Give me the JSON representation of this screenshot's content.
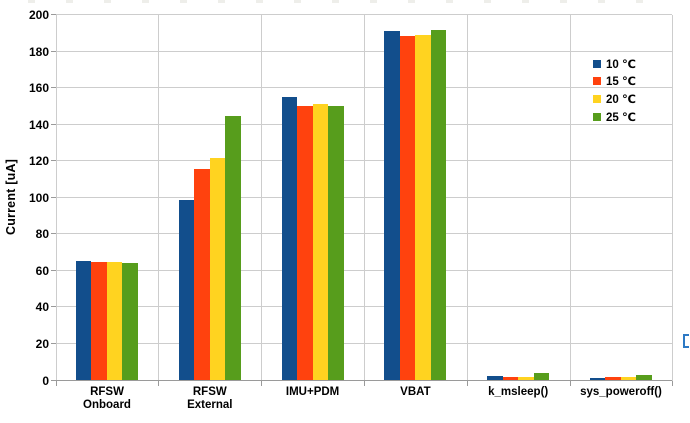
{
  "artifacts": {
    "bracket_glyph": "["
  },
  "chart_data": {
    "type": "bar",
    "title": "",
    "xlabel": "",
    "ylabel": "Current [uA]",
    "ylim": [
      0,
      200
    ],
    "ytick_step": 20,
    "grid": true,
    "legend_position": "inside-right",
    "categories": [
      "RFSW\nOnboard",
      "RFSW\nExternal",
      "IMU+PDM",
      "VBAT",
      "k_msleep()",
      "sys_poweroff()"
    ],
    "series": [
      {
        "name": "10 ℃",
        "color": "#124E8C",
        "values": [
          65.5,
          99,
          155,
          191,
          2.5,
          1.5
        ]
      },
      {
        "name": "15 ℃",
        "color": "#FF420E",
        "values": [
          65,
          116,
          150,
          188.5,
          2,
          2.0
        ]
      },
      {
        "name": "20 ℃",
        "color": "#FFD320",
        "values": [
          65,
          122,
          151.5,
          189,
          2,
          2.0
        ]
      },
      {
        "name": "25 ℃",
        "color": "#579D1C",
        "values": [
          64.5,
          145,
          150,
          192,
          4,
          3.0
        ]
      }
    ],
    "colors": {
      "gridline": "#cdcdcd",
      "axis": "#9a9a9a",
      "text": "#000000"
    }
  }
}
